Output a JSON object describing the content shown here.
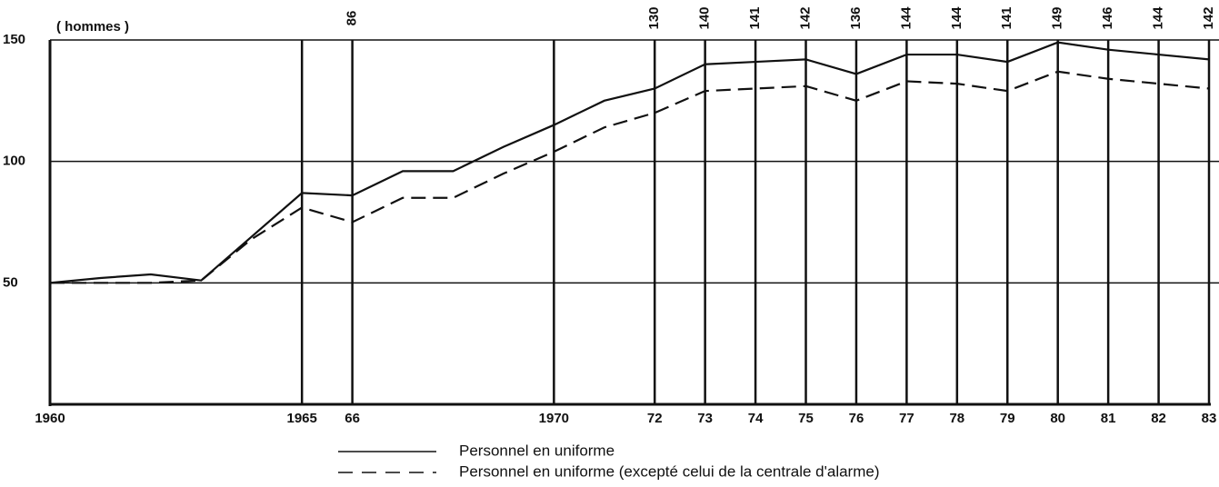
{
  "chart_data": {
    "type": "line",
    "y_unit": "( hommes )",
    "x": [
      1960,
      1961,
      1962,
      1963,
      1964,
      1965,
      1966,
      1967,
      1968,
      1969,
      1970,
      1971,
      1972,
      1973,
      1974,
      1975,
      1976,
      1977,
      1978,
      1979,
      1980,
      1981,
      1982,
      1983
    ],
    "series": [
      {
        "name": "Personnel en uniforme",
        "color": "#111111",
        "dash": "solid",
        "values": [
          50,
          52,
          53.5,
          51,
          69,
          87,
          86,
          96,
          96,
          106,
          115,
          125,
          130,
          140,
          141,
          142,
          136,
          144,
          144,
          141,
          149,
          146,
          144,
          142
        ],
        "value_labels": [
          null,
          null,
          null,
          null,
          null,
          null,
          "86",
          null,
          null,
          null,
          null,
          null,
          "130",
          "140",
          "141",
          "142",
          "136",
          "144",
          "144",
          "141",
          "149",
          "146",
          "144",
          "142"
        ]
      },
      {
        "name": "Personnel en uniforme (excepté celui de la centrale d'alarme)",
        "color": "#111111",
        "dash": "dashed",
        "values": [
          50,
          50,
          50,
          51,
          68,
          81,
          75,
          85,
          85,
          95,
          104,
          114,
          120,
          129,
          130,
          131,
          125,
          133,
          132,
          129,
          137,
          134,
          132,
          130
        ]
      }
    ],
    "xlim": [
      1960,
      1983
    ],
    "xticks": [
      1960,
      1965,
      {
        "value": 1966,
        "label": "66"
      },
      1970,
      {
        "value": 1972,
        "label": "72"
      },
      {
        "value": 1973,
        "label": "73"
      },
      {
        "value": 1974,
        "label": "74"
      },
      {
        "value": 1975,
        "label": "75"
      },
      {
        "value": 1976,
        "label": "76"
      },
      {
        "value": 1977,
        "label": "77"
      },
      {
        "value": 1978,
        "label": "78"
      },
      {
        "value": 1979,
        "label": "79"
      },
      {
        "value": 1980,
        "label": "80"
      },
      {
        "value": 1981,
        "label": "81"
      },
      {
        "value": 1982,
        "label": "82"
      },
      {
        "value": 1983,
        "label": "83"
      }
    ],
    "ylim": [
      0,
      150
    ],
    "yticks": [
      50,
      100,
      150
    ],
    "grid": true
  }
}
